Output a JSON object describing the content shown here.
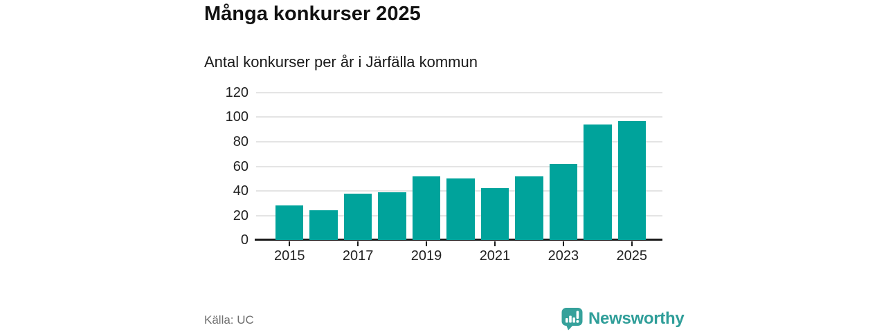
{
  "title": "Många konkurser 2025",
  "subtitle": "Antal konkurser per år i Järfälla kommun",
  "source": "Källa: UC",
  "brand": {
    "name": "Newsworthy"
  },
  "colors": {
    "bar": "#00a39b",
    "grid": "#e4e4e4",
    "axis": "#1a1a1a",
    "text": "#222222",
    "muted": "#6f6f6f",
    "badge": "#35a19b",
    "wordmark": "#2f9e99",
    "title": "#111111"
  },
  "chart_data": {
    "type": "bar",
    "title": "Många konkurser 2025",
    "subtitle": "Antal konkurser per år i Järfälla kommun",
    "categories": [
      "2015",
      "2016",
      "2017",
      "2018",
      "2019",
      "2020",
      "2021",
      "2022",
      "2023",
      "2024",
      "2025"
    ],
    "values": [
      28,
      24,
      38,
      39,
      52,
      50,
      42,
      52,
      62,
      94,
      97
    ],
    "xlabel": "",
    "ylabel": "",
    "ylim": [
      0,
      120
    ],
    "ytick_step": 20,
    "ytick_labels": [
      "0",
      "20",
      "40",
      "60",
      "80",
      "100",
      "120"
    ],
    "xtick_labels": [
      "2015",
      "2017",
      "2019",
      "2021",
      "2023",
      "2025"
    ],
    "xtick_every": 2,
    "legend": "none",
    "grid": "horizontal",
    "bar_color": "#00a39b",
    "source": "Källa: UC"
  }
}
